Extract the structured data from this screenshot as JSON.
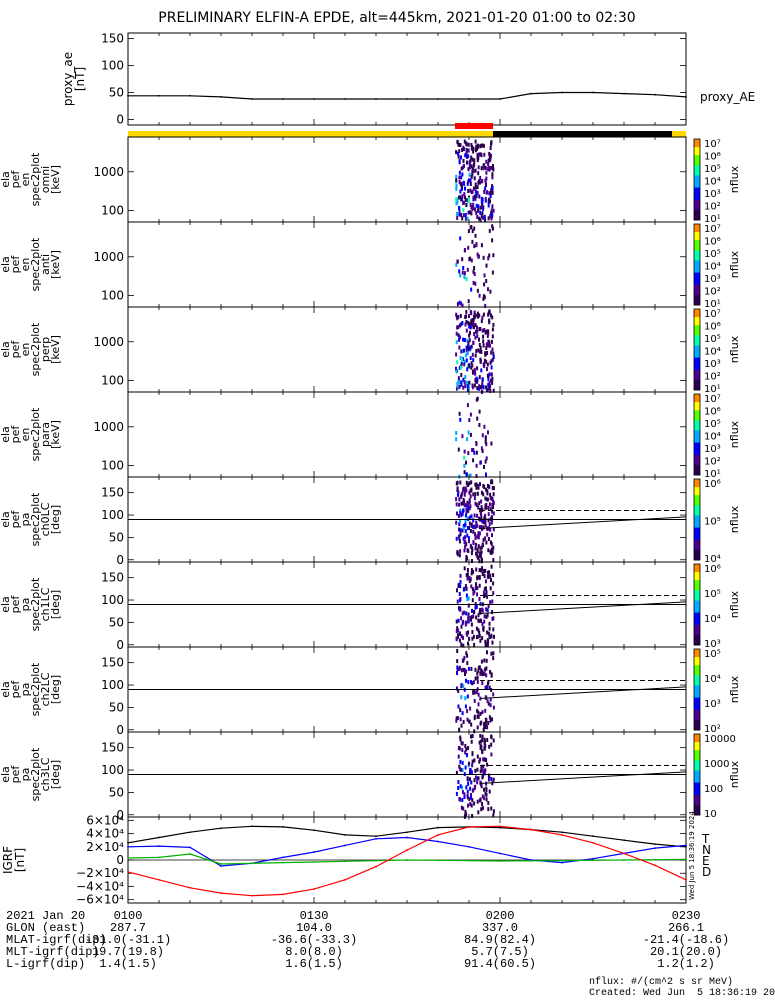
{
  "title": "PRELIMINARY ELFIN-A EPDE, alt=445km, 2021-01-20 01:00 to 02:30",
  "colors": {
    "orbit_yellow": "#ffd800",
    "orbit_black": "#000000",
    "marker_red": "#ff0000",
    "igrf_t": "#000000",
    "igrf_n": "#0000ff",
    "igrf_e": "#00b000",
    "igrf_d": "#ff0000"
  },
  "chart_data": [
    {
      "type": "line",
      "id": "proxy_ae",
      "ylabel": "proxy_ae\n[nT]",
      "legend": "proxy_AE",
      "y_ticks": [
        "150",
        "100",
        "50",
        "0"
      ],
      "ylim": [
        -10,
        160
      ],
      "x": [
        0,
        5,
        10,
        15,
        20,
        25,
        30,
        35,
        40,
        45,
        50,
        55,
        60,
        65,
        70,
        75,
        80,
        85,
        90
      ],
      "values": [
        44,
        44,
        44,
        42,
        38,
        38,
        38,
        38,
        38,
        38,
        38,
        38,
        38,
        48,
        50,
        50,
        48,
        46,
        42
      ]
    },
    {
      "type": "heatmap",
      "id": "en_spec_omni",
      "ylabel": [
        "ela",
        "pef",
        "en",
        "spec2plot",
        "omni",
        "[keV]"
      ],
      "y_ticks": [
        "1000",
        "100"
      ],
      "scale": "log",
      "cbar_ticks": [
        "10⁷",
        "10⁶",
        "10⁵",
        "10⁴",
        "10³",
        "10²",
        "10¹"
      ],
      "cbar_label": "nflux"
    },
    {
      "type": "heatmap",
      "id": "en_spec_anti",
      "ylabel": [
        "ela",
        "pef",
        "en",
        "spec2plot",
        "anti",
        "[keV]"
      ],
      "y_ticks": [
        "1000",
        "100"
      ],
      "scale": "log",
      "cbar_ticks": [
        "10⁷",
        "10⁶",
        "10⁵",
        "10⁴",
        "10³",
        "10²",
        "10¹"
      ],
      "cbar_label": "nflux"
    },
    {
      "type": "heatmap",
      "id": "en_spec_perp",
      "ylabel": [
        "ela",
        "pef",
        "en",
        "spec2plot",
        "perp",
        "[keV]"
      ],
      "y_ticks": [
        "1000",
        "100"
      ],
      "scale": "log",
      "cbar_ticks": [
        "10⁷",
        "10⁶",
        "10⁵",
        "10⁴",
        "10³",
        "10²",
        "10¹"
      ],
      "cbar_label": "nflux"
    },
    {
      "type": "heatmap",
      "id": "en_spec_para",
      "ylabel": [
        "ela",
        "pef",
        "en",
        "spec2plot",
        "para",
        "[keV]"
      ],
      "y_ticks": [
        "1000",
        "100"
      ],
      "scale": "log",
      "cbar_ticks": [
        "10⁷",
        "10⁶",
        "10⁵",
        "10⁴",
        "10³",
        "10²",
        "10¹"
      ],
      "cbar_label": "nflux"
    },
    {
      "type": "heatmap",
      "id": "pa_ch0",
      "ylabel": [
        "ela",
        "pef",
        "pa",
        "spec2plot",
        "ch0LC",
        "[deg]"
      ],
      "y_ticks": [
        "150",
        "100",
        "50",
        "0"
      ],
      "scale": "linear",
      "cbar_ticks": [
        "10⁶",
        "10⁵",
        "10⁴"
      ],
      "cbar_label": "nflux"
    },
    {
      "type": "heatmap",
      "id": "pa_ch1",
      "ylabel": [
        "ela",
        "pef",
        "pa",
        "spec2plot",
        "ch1LC",
        "[deg]"
      ],
      "y_ticks": [
        "150",
        "100",
        "50",
        "0"
      ],
      "scale": "linear",
      "cbar_ticks": [
        "10⁶",
        "10⁵",
        "10⁴",
        "10³"
      ],
      "cbar_label": "nflux"
    },
    {
      "type": "heatmap",
      "id": "pa_ch2",
      "ylabel": [
        "ela",
        "pef",
        "pa",
        "spec2plot",
        "ch2LC",
        "[deg]"
      ],
      "y_ticks": [
        "150",
        "100",
        "50",
        "0"
      ],
      "scale": "linear",
      "cbar_ticks": [
        "10⁵",
        "10⁴",
        "10³",
        "10²"
      ],
      "cbar_label": "nflux"
    },
    {
      "type": "heatmap",
      "id": "pa_ch3",
      "ylabel": [
        "ela",
        "pef",
        "pa",
        "spec2plot",
        "ch3LC",
        "[deg]"
      ],
      "y_ticks": [
        "150",
        "100",
        "50",
        "0"
      ],
      "scale": "linear",
      "cbar_ticks": [
        "10000",
        "1000",
        "100",
        "10"
      ],
      "cbar_label": "nflux"
    },
    {
      "type": "line",
      "id": "igrf",
      "ylabel": "IGRF\n[nT]",
      "y_ticks": [
        "6×10⁴",
        "4×10⁴",
        "2×10⁴",
        "0",
        "−2×10⁴",
        "−4×10⁴",
        "−6×10⁴"
      ],
      "ylim": [
        -65000,
        65000
      ],
      "x": [
        0,
        5,
        10,
        15,
        20,
        25,
        30,
        35,
        40,
        45,
        50,
        55,
        60,
        65,
        70,
        75,
        80,
        85,
        90
      ],
      "series": [
        {
          "name": "T",
          "values": [
            26000,
            34000,
            42000,
            48000,
            51000,
            50000,
            45000,
            38000,
            36000,
            42000,
            49000,
            50000,
            49000,
            46000,
            42000,
            36000,
            30000,
            24000,
            20000
          ]
        },
        {
          "name": "N",
          "values": [
            20000,
            21000,
            19000,
            -9000,
            -5000,
            4000,
            12000,
            22000,
            32000,
            34000,
            28000,
            20000,
            10000,
            0,
            -4000,
            2000,
            10000,
            18000,
            22000
          ]
        },
        {
          "name": "E",
          "values": [
            3000,
            4000,
            9000,
            -6000,
            -5000,
            -4000,
            -3000,
            -2000,
            -1000,
            0,
            -500,
            -1000,
            -1500,
            -1200,
            -1000,
            -500,
            0,
            500,
            1000
          ]
        },
        {
          "name": "D",
          "values": [
            -18000,
            -30000,
            -42000,
            -50000,
            -54000,
            -52000,
            -44000,
            -30000,
            -10000,
            15000,
            38000,
            50000,
            51000,
            46000,
            38000,
            26000,
            10000,
            -8000,
            -30000
          ]
        }
      ]
    }
  ],
  "x_tick_labels": [
    "0100",
    "0130",
    "0200",
    "0230"
  ],
  "footer_rows": [
    {
      "label": "2021 Jan 20",
      "values": [
        "0100",
        "0130",
        "0200",
        "0230"
      ]
    },
    {
      "label": "GLON (east)",
      "values": [
        "287.7",
        "104.0",
        "337.0",
        "266.1"
      ]
    },
    {
      "label": "MLAT-igrf(dip)",
      "values": [
        "-31.0(-31.1)",
        "-36.6(-33.3)",
        "84.9(82.4)",
        "-21.4(-18.6)"
      ]
    },
    {
      "label": "MLT-igrf(dip)",
      "values": [
        "19.7(19.8)",
        "8.0(8.0)",
        "5.7(7.5)",
        "20.1(20.0)"
      ]
    },
    {
      "label": "L-igrf(dip)",
      "values": [
        "1.4(1.5)",
        "1.6(1.5)",
        "91.4(60.5)",
        "1.2(1.2)"
      ]
    }
  ],
  "units_note": "nflux: #/(cm^2 s sr MeV)",
  "created": "Created: Wed Jun  5 18:36:19 2024",
  "side_stamp": "Wed Jun  5 18:36:19 2024"
}
